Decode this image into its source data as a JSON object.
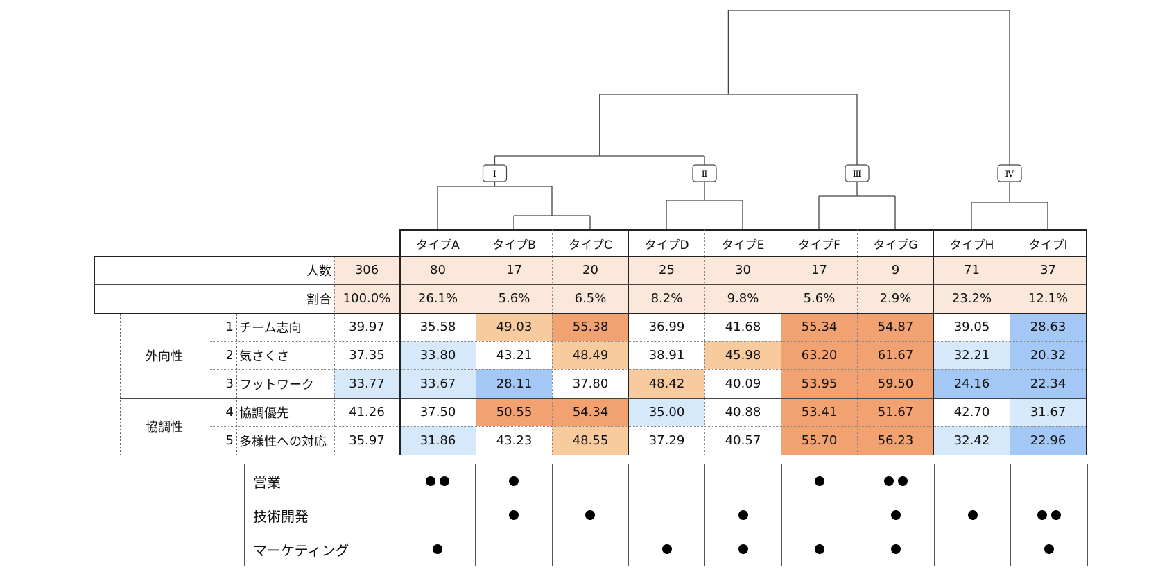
{
  "chart_data": {
    "type": "table",
    "title": "",
    "types": [
      "タイプA",
      "タイプB",
      "タイプC",
      "タイプD",
      "タイプE",
      "タイプF",
      "タイプG",
      "タイプH",
      "タイプI"
    ],
    "clusters": [
      {
        "label": "Ⅰ",
        "members": [
          0,
          1,
          2
        ]
      },
      {
        "label": "Ⅱ",
        "members": [
          3,
          4
        ]
      },
      {
        "label": "Ⅲ",
        "members": [
          5,
          6
        ]
      },
      {
        "label": "Ⅳ",
        "members": [
          7,
          8
        ]
      }
    ],
    "summary_rows": [
      {
        "label": "人数",
        "total": "306",
        "values": [
          "80",
          "17",
          "20",
          "25",
          "30",
          "17",
          "9",
          "71",
          "37"
        ]
      },
      {
        "label": "割合",
        "total": "100.0%",
        "values": [
          "26.1%",
          "5.6%",
          "6.5%",
          "8.2%",
          "9.8%",
          "5.6%",
          "2.9%",
          "23.2%",
          "12.1%"
        ]
      }
    ],
    "groups": [
      {
        "name": "外向性",
        "rows": [
          0,
          1,
          2
        ]
      },
      {
        "name": "協調性",
        "rows": [
          3,
          4
        ]
      }
    ],
    "rows": [
      {
        "no": "1",
        "item": "チーム志向",
        "total": "39.97",
        "values": [
          "35.58",
          "49.03",
          "55.38",
          "36.99",
          "41.68",
          "55.34",
          "54.87",
          "39.05",
          "28.63"
        ]
      },
      {
        "no": "2",
        "item": "気さくさ",
        "total": "37.35",
        "values": [
          "33.80",
          "43.21",
          "48.49",
          "38.91",
          "45.98",
          "63.20",
          "61.67",
          "32.21",
          "20.32"
        ]
      },
      {
        "no": "3",
        "item": "フットワーク",
        "total": "33.77",
        "values": [
          "33.67",
          "28.11",
          "37.80",
          "48.42",
          "40.09",
          "53.95",
          "59.50",
          "24.16",
          "22.34"
        ]
      },
      {
        "no": "4",
        "item": "協調優先",
        "total": "41.26",
        "values": [
          "37.50",
          "50.55",
          "54.34",
          "35.00",
          "40.88",
          "53.41",
          "51.67",
          "42.70",
          "31.67"
        ]
      },
      {
        "no": "5",
        "item": "多様性への対応",
        "total": "35.97",
        "values": [
          "31.86",
          "43.23",
          "48.55",
          "37.29",
          "40.57",
          "55.70",
          "56.23",
          "32.42",
          "22.96"
        ]
      }
    ],
    "colors": {
      "summary": "#FBE8DA",
      "high": "#F2A170",
      "mid_high": "#F8CB9E",
      "mid_low": "#D6E9FA",
      "low": "#A4C8F5"
    },
    "cell_levels": [
      [
        "w",
        "mh",
        "h",
        "w",
        "w",
        "h",
        "h",
        "w",
        "l"
      ],
      [
        "ml",
        "w",
        "mh",
        "w",
        "mh",
        "h",
        "h",
        "ml",
        "l"
      ],
      [
        "ml",
        "l",
        "w",
        "mh",
        "w",
        "h",
        "h",
        "l",
        "l"
      ],
      [
        "w",
        "h",
        "h",
        "ml",
        "w",
        "h",
        "h",
        "w",
        "ml"
      ],
      [
        "ml",
        "w",
        "mh",
        "w",
        "w",
        "h",
        "h",
        "ml",
        "l"
      ]
    ],
    "total_levels": [
      "w",
      "w",
      "ml",
      "w",
      "w"
    ]
  },
  "jobs": [
    {
      "label": "営業",
      "dots": [
        2,
        1,
        0,
        0,
        0,
        1,
        2,
        0,
        0
      ]
    },
    {
      "label": "技術開発",
      "dots": [
        0,
        1,
        1,
        0,
        1,
        0,
        1,
        1,
        2
      ]
    },
    {
      "label": "マーケティング",
      "dots": [
        1,
        0,
        0,
        1,
        1,
        1,
        1,
        0,
        1
      ]
    }
  ]
}
